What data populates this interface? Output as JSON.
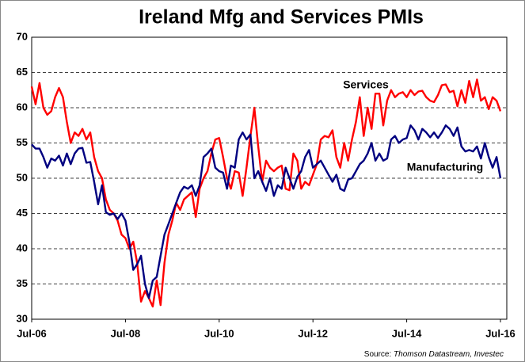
{
  "chart_data": {
    "type": "line",
    "title": "Ireland Mfg and Services PMIs",
    "categories": [
      "Jul-06",
      null,
      null,
      null,
      null,
      null,
      null,
      null,
      null,
      null,
      null,
      null,
      null,
      null,
      null,
      null,
      null,
      null,
      null,
      null,
      null,
      null,
      null,
      null,
      "Jul-08",
      null,
      null,
      null,
      null,
      null,
      null,
      null,
      null,
      null,
      null,
      null,
      null,
      null,
      null,
      null,
      null,
      null,
      null,
      null,
      null,
      null,
      null,
      null,
      "Jul-10",
      null,
      null,
      null,
      null,
      null,
      null,
      null,
      null,
      null,
      null,
      null,
      null,
      null,
      null,
      null,
      null,
      null,
      null,
      null,
      null,
      null,
      null,
      null,
      "Jul-12",
      null,
      null,
      null,
      null,
      null,
      null,
      null,
      null,
      null,
      null,
      null,
      null,
      null,
      null,
      null,
      null,
      null,
      null,
      null,
      null,
      null,
      null,
      null,
      "Jul-14",
      null,
      null,
      null,
      null,
      null,
      null,
      null,
      null,
      null,
      null,
      null,
      null,
      null,
      null,
      null,
      null,
      null,
      null,
      null,
      null,
      null,
      null,
      null,
      "Jul-16"
    ],
    "series": [
      {
        "name": "Services",
        "color": "#ff0000",
        "values": [
          63,
          60.5,
          63.5,
          60,
          59,
          59.5,
          61.5,
          62.8,
          61.5,
          58,
          55,
          56.5,
          56,
          57,
          55.5,
          56.5,
          53,
          51,
          50,
          47,
          45.5,
          45,
          44,
          42,
          41.5,
          40,
          41,
          38,
          32.5,
          34,
          33,
          31.8,
          35.5,
          32,
          38,
          42,
          44,
          46.5,
          45.5,
          47,
          47.5,
          48,
          44.5,
          48.5,
          50,
          51,
          53.5,
          55.5,
          55.7,
          53,
          50,
          48.5,
          51,
          50.8,
          47.5,
          51.5,
          56,
          60,
          54.5,
          49.5,
          52.5,
          51.5,
          51,
          51.5,
          51.8,
          48.5,
          48.3,
          53.5,
          52.5,
          48.5,
          49.5,
          49,
          50.5,
          52,
          55.5,
          56,
          55.8,
          56.8,
          53,
          51.5,
          55,
          52.5,
          55.5,
          58,
          61.5,
          56,
          60,
          57,
          62,
          62,
          57.5,
          61,
          62.5,
          61.5,
          62,
          62.2,
          61.5,
          62.5,
          61.8,
          62.3,
          62.4,
          61.5,
          61,
          60.8,
          61.8,
          63.2,
          63.3,
          62.2,
          62.4,
          60.2,
          62.5,
          60.7,
          63.8,
          61.5,
          64,
          61,
          61.5,
          59.8,
          61.5,
          61,
          59.5
        ]
      },
      {
        "name": "Manufacturing",
        "color": "#000080",
        "values": [
          54.8,
          54.2,
          54.2,
          53,
          51.5,
          52.8,
          52.5,
          53.2,
          51.8,
          53.5,
          52,
          53.5,
          54.2,
          54.3,
          52.2,
          52.3,
          49.5,
          46.3,
          49,
          45.2,
          44.8,
          45,
          44.2,
          45,
          44,
          41,
          37,
          37.8,
          39,
          35,
          33,
          35.5,
          36,
          39,
          42,
          43.5,
          45,
          46.5,
          48,
          48.8,
          48.5,
          49,
          47.5,
          49,
          53,
          53.5,
          54.2,
          51.5,
          51,
          50.8,
          48.5,
          51.8,
          51.5,
          55.5,
          56.5,
          55.5,
          56.2,
          50,
          51,
          49.5,
          48.2,
          50,
          47.5,
          49,
          48.5,
          51.5,
          50,
          48.5,
          50.2,
          51,
          53,
          54,
          51.5,
          52,
          52.5,
          51.5,
          50.5,
          49.5,
          50.5,
          48.5,
          48.2,
          49.8,
          50,
          51,
          52,
          52.5,
          53.5,
          55,
          52.5,
          53.5,
          52.5,
          52.8,
          55.5,
          56,
          55,
          55.5,
          55.7,
          57.5,
          56.8,
          55.5,
          57,
          56.5,
          55.8,
          56.5,
          55.7,
          56.5,
          57.5,
          57,
          56,
          57.2,
          54.5,
          53.8,
          54,
          53.8,
          54.5,
          52.8,
          55,
          53,
          51.5,
          53,
          50
        ]
      }
    ],
    "ylim": [
      30,
      70
    ],
    "yticks": [
      30,
      35,
      40,
      45,
      50,
      55,
      60,
      65,
      70
    ],
    "grid": true,
    "source_label": "Source:",
    "source_text": "Thomson Datastream, Investec"
  }
}
